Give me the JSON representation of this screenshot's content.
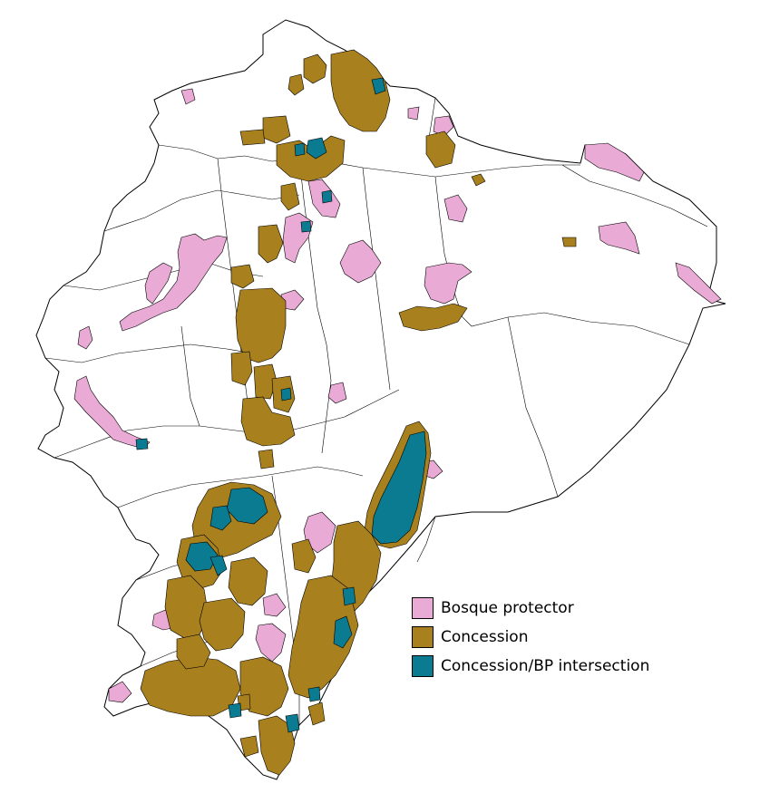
{
  "legend": {
    "items": [
      {
        "key": "bp",
        "label": "Bosque protector",
        "color": "#e9aad5"
      },
      {
        "key": "concession",
        "label": "Concession",
        "color": "#a9801e"
      },
      {
        "key": "intersection",
        "label": "Concession/BP intersection",
        "color": "#0a7b91"
      }
    ]
  },
  "colors": {
    "background": "#ffffff",
    "boundary": "#000000",
    "bp": "#e9aad5",
    "concession": "#a9801e",
    "intersection": "#0a7b91"
  }
}
